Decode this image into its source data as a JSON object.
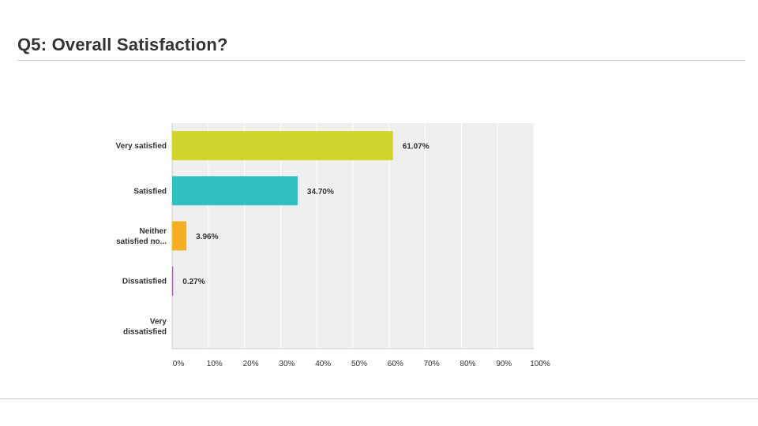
{
  "page": {
    "title": "Q5: Overall Satisfaction?"
  },
  "chart_data": {
    "type": "bar",
    "orientation": "horizontal",
    "categories": [
      [
        "Very satisfied"
      ],
      [
        "Satisfied"
      ],
      [
        "Neither",
        "satisfied no..."
      ],
      [
        "Dissatisfied"
      ],
      [
        "Very",
        "dissatisfied"
      ]
    ],
    "values": [
      61.07,
      34.7,
      3.96,
      0.27,
      0
    ],
    "value_labels": [
      "61.07%",
      "34.70%",
      "3.96%",
      "0.27%",
      ""
    ],
    "colors": [
      "#cfd52a",
      "#32bfc0",
      "#f6ae23",
      "#a35c9f",
      "#333333"
    ],
    "xlim": [
      0,
      100
    ],
    "xticks": [
      "0%",
      "10%",
      "20%",
      "30%",
      "40%",
      "50%",
      "60%",
      "70%",
      "80%",
      "90%",
      "100%"
    ],
    "grid": true,
    "plot_background": "#efefef",
    "legend": "none"
  }
}
